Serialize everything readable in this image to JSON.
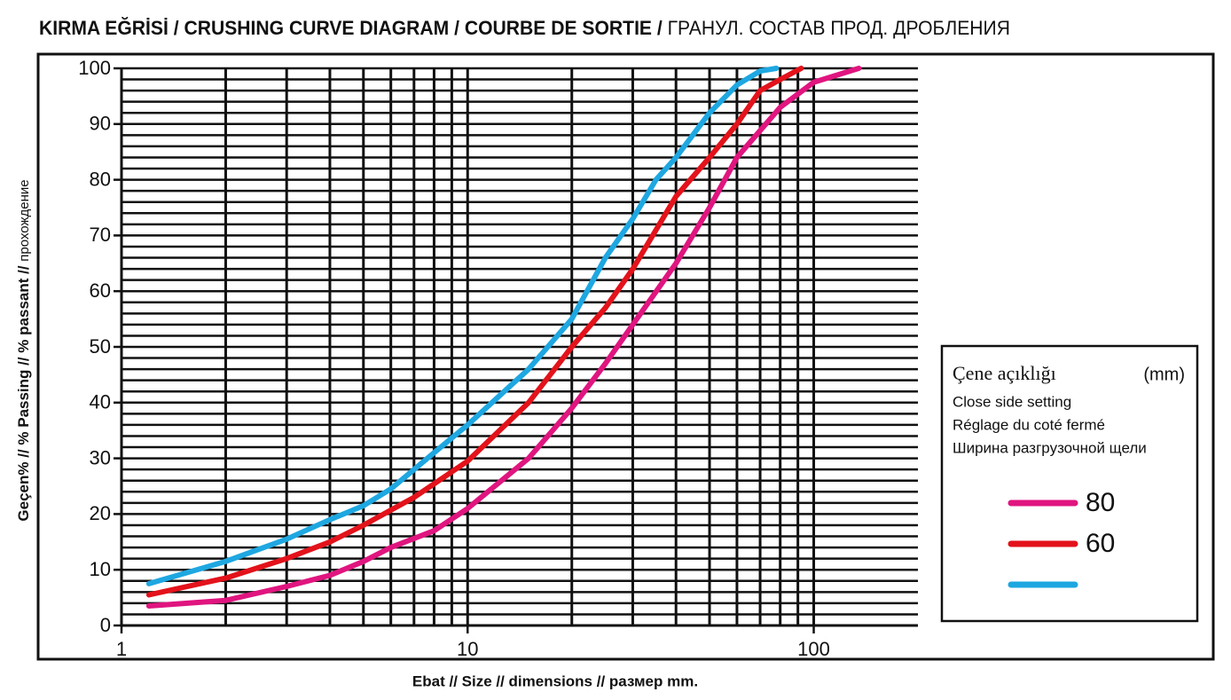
{
  "chart_data": {
    "type": "line",
    "title": [
      "KIRMA EĞRİSİ / CRUSHING CURVE DIAGRAM / COURBE DE SORTIE /",
      "ГРАНУЛ. СОСТАВ ПРОД. ДРОБЛЕНИЯ"
    ],
    "y_label": [
      "Geçen% // % Passing // % passant //",
      "прохождение"
    ],
    "x_label": "Ebat // Size // dimensions // размер  mm.",
    "log_x": true,
    "xlim": [
      1,
      200
    ],
    "xticks": [
      1,
      10,
      100
    ],
    "xminor": [
      2,
      3,
      4,
      5,
      6,
      7,
      8,
      9,
      20,
      30,
      40,
      50,
      60,
      70,
      80,
      90
    ],
    "ylim": [
      0,
      100
    ],
    "yticks": [
      0,
      10,
      20,
      30,
      40,
      50,
      60,
      70,
      80,
      90,
      100
    ],
    "yminor": [
      2,
      4,
      6,
      8,
      12,
      14,
      16,
      18,
      22,
      24,
      26,
      28,
      32,
      34,
      36,
      38,
      42,
      44,
      46,
      48,
      52,
      54,
      56,
      58,
      62,
      64,
      66,
      68,
      72,
      74,
      76,
      78,
      82,
      84,
      86,
      88,
      92,
      94,
      96,
      98
    ],
    "grid": true,
    "legend_title": [
      "Çene açıklığı",
      "(mm)",
      "Close side setting",
      "Réglage du coté fermé",
      "Ширина разгрузочной щели"
    ],
    "legend_position": "right",
    "series": [
      {
        "name": "80",
        "color": "#e0157f",
        "x": [
          1.2,
          2,
          3,
          4,
          5,
          6,
          8,
          10,
          15,
          20,
          25,
          30,
          40,
          50,
          60,
          80,
          100,
          135
        ],
        "values": [
          3.5,
          4.5,
          7,
          9,
          11.5,
          14,
          17,
          21,
          30,
          39,
          47,
          54,
          65,
          75,
          84,
          93,
          97.5,
          100
        ]
      },
      {
        "name": "60",
        "color": "#e3121b",
        "x": [
          1.2,
          2,
          3,
          4,
          5,
          7,
          10,
          15,
          20,
          25,
          30,
          40,
          50,
          60,
          70,
          80,
          92
        ],
        "values": [
          5.5,
          8.5,
          12,
          15,
          18,
          23,
          29.5,
          40,
          50,
          57,
          64,
          77,
          84,
          90,
          96,
          98,
          100
        ]
      },
      {
        "name": null,
        "color": "#1ea7e1",
        "x": [
          1.2,
          2,
          3,
          4,
          5,
          6,
          8,
          10,
          15,
          20,
          25,
          30,
          35,
          40,
          50,
          60,
          70,
          78
        ],
        "values": [
          7.5,
          11.5,
          15.5,
          19,
          21.5,
          24.5,
          31,
          36,
          46,
          55,
          66,
          73,
          80,
          84,
          92,
          97,
          99.5,
          100
        ]
      }
    ]
  }
}
